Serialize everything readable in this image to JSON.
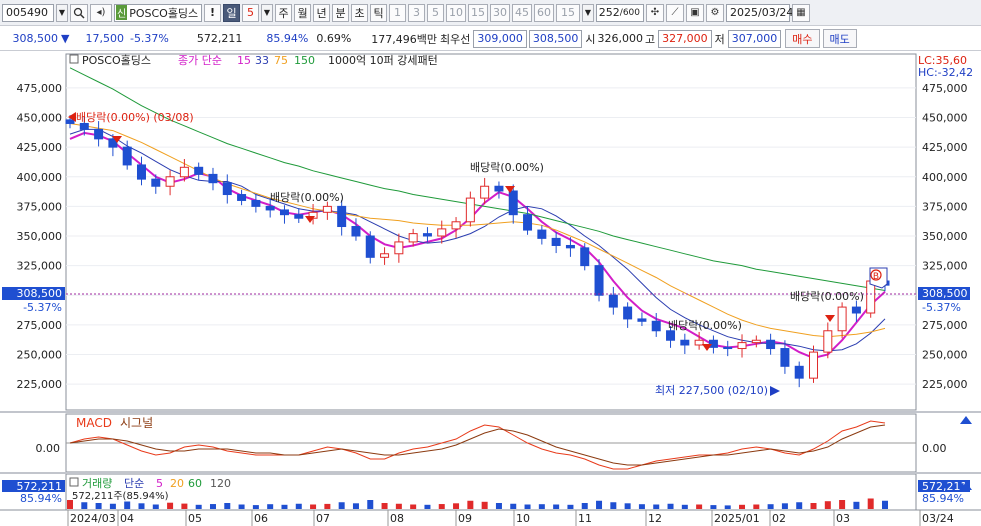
{
  "toolbar": {
    "code": "005490",
    "name": "POSCO홀딩스",
    "mark": "신",
    "warn": "!",
    "period_type": "일",
    "period_value": "5",
    "period_buttons": [
      "주",
      "월",
      "년",
      "분",
      "초",
      "틱"
    ],
    "interval_buttons": [
      "1",
      "3",
      "5",
      "10",
      "15",
      "30",
      "45",
      "60"
    ],
    "custom_interval": "15",
    "bar_count": "252",
    "bar_total": "/600",
    "date": "2025/03/24"
  },
  "quote": {
    "price": "308,500",
    "change": "17,500",
    "change_pct": "-5.37%",
    "volume": "572,211",
    "vol_ratio": "85.94%",
    "turnover_pct": "0.69%",
    "amount": "177,496백만",
    "bid_label": "최우선",
    "bid": "309,000",
    "ask": "308,500",
    "open_label": "시",
    "open": "326,000",
    "high_label": "고",
    "high": "327,000",
    "low_label": "저",
    "low": "307,000",
    "buy_label": "매수",
    "sell_label": "매도"
  },
  "chart_header": {
    "name": "POSCO홀딩스",
    "ma_label": "종가 단순",
    "ma_periods": [
      "15",
      "33",
      "75",
      "150"
    ],
    "extra": "1000억 10퍼 강세패턴"
  },
  "right_labels": {
    "lc": "LC:35,60",
    "hc": "HC:-32,42"
  },
  "price_tag": {
    "value": "308,500",
    "pct": "-5.37%"
  },
  "annotations": {
    "div1": "배당락(0.00%) (03/08)",
    "div2": "배당락(0.00%)",
    "div3": "배당락(0.00%)",
    "div4": "배당락(0.00%)",
    "div5": "배당락(0.00%)",
    "low": "최저 227,500 (02/10)",
    "badge": "B"
  },
  "macd": {
    "title": "MACD",
    "signal": "시그널",
    "zero": "0.00"
  },
  "volume_panel": {
    "title": "거래량",
    "ma_label": "단순",
    "ma_periods": [
      "5",
      "20",
      "60",
      "120"
    ],
    "current": "572,211주(85.94%)",
    "tag_value": "572,211",
    "tag_pct": "85.94%"
  },
  "x_ticks": [
    "2024/03",
    "04",
    "05",
    "06",
    "07",
    "08",
    "09",
    "10",
    "11",
    "12",
    "2025/01",
    "02",
    "03",
    "03/24"
  ],
  "colors": {
    "up": "#e02a2a",
    "down": "#1f4fd1",
    "ma15": "#d21ec8",
    "ma33": "#2b3db0",
    "ma75": "#f0a020",
    "ma150": "#1f9a3a",
    "macd": "#e83a1a",
    "signal": "#8b3a10"
  },
  "chart_data": {
    "type": "candlestick",
    "y_ticks": [
      "475,000",
      "450,000",
      "425,000",
      "400,000",
      "375,000",
      "350,000",
      "325,000",
      "300,000",
      "275,000",
      "250,000",
      "225,000"
    ],
    "ylim": [
      215000,
      490000
    ],
    "last_close": 308500,
    "period_low": 227500,
    "series": [
      {
        "name": "15",
        "values": [
          432000,
          437000,
          435000,
          430000,
          420000,
          410000,
          400000,
          395000,
          398000,
          403000,
          400000,
          390000,
          384000,
          380000,
          376000,
          370000,
          368000,
          370000,
          372000,
          368000,
          360000,
          350000,
          343000,
          340000,
          342000,
          345000,
          348000,
          355000,
          365000,
          378000,
          387000,
          383000,
          373000,
          362000,
          353000,
          347000,
          340000,
          328000,
          312000,
          298000,
          287000,
          280000,
          276000,
          272000,
          265000,
          258000,
          256000,
          257000,
          259000,
          261000,
          259000,
          252000,
          247000,
          250000,
          262000,
          277000,
          292000,
          303000
        ]
      },
      {
        "name": "33",
        "values": [
          436000,
          440000,
          440000,
          434000,
          426000,
          420000,
          413000,
          406000,
          401000,
          397000,
          396000,
          396000,
          392000,
          385000,
          381000,
          377000,
          373000,
          371000,
          371000,
          370000,
          368000,
          362000,
          356000,
          350000,
          346000,
          344000,
          345000,
          348000,
          352000,
          358000,
          366000,
          372000,
          375000,
          373000,
          367000,
          359000,
          350000,
          342000,
          332000,
          322000,
          310000,
          298000,
          288000,
          281000,
          275000,
          270000,
          265000,
          262000,
          260000,
          259000,
          259000,
          257000,
          254000,
          253000,
          254000,
          259000,
          268000,
          280000
        ]
      },
      {
        "name": "75",
        "values": [
          445000,
          443000,
          441000,
          439000,
          434000,
          429000,
          423000,
          417000,
          411000,
          405000,
          399000,
          394000,
          390000,
          386000,
          382000,
          379000,
          376000,
          373000,
          371000,
          369000,
          367000,
          365000,
          364000,
          363000,
          361000,
          360000,
          359000,
          359000,
          359000,
          360000,
          361000,
          362000,
          361000,
          359000,
          355000,
          350000,
          345000,
          339000,
          333000,
          327000,
          321000,
          315000,
          308000,
          302000,
          296000,
          290000,
          284000,
          279000,
          275000,
          272000,
          270000,
          268000,
          266000,
          265000,
          266000,
          267000,
          269000,
          272000
        ]
      },
      {
        "name": "150",
        "values": [
          492000,
          486000,
          480000,
          474000,
          467000,
          460000,
          454000,
          448000,
          443000,
          438000,
          433000,
          428000,
          424000,
          420000,
          416000,
          412000,
          409000,
          405000,
          402000,
          399000,
          396000,
          393000,
          390000,
          388000,
          385000,
          383000,
          381000,
          379000,
          377000,
          375000,
          373000,
          371000,
          369000,
          366000,
          363000,
          360000,
          357000,
          354000,
          350000,
          347000,
          344000,
          341000,
          338000,
          335000,
          332000,
          329000,
          327000,
          325000,
          322000,
          320000,
          318000,
          316000,
          314000,
          312000,
          310000,
          308000,
          306000,
          304000
        ]
      },
      {
        "name": "close",
        "values": [
          445000,
          440000,
          432000,
          425000,
          410000,
          398000,
          392000,
          400000,
          408000,
          402000,
          395000,
          385000,
          380000,
          375000,
          372000,
          368000,
          365000,
          370000,
          375000,
          358000,
          350000,
          332000,
          335000,
          345000,
          352000,
          350000,
          356000,
          362000,
          382000,
          392000,
          388000,
          368000,
          355000,
          348000,
          342000,
          340000,
          325000,
          300000,
          290000,
          280000,
          278000,
          270000,
          262000,
          258000,
          262000,
          256000,
          255000,
          260000,
          262000,
          255000,
          240000,
          230000,
          252000,
          270000,
          290000,
          285000,
          312000,
          308500
        ]
      }
    ],
    "macd": [
      0,
      2,
      3,
      2,
      -1,
      -4,
      -6,
      -5,
      -2,
      -1,
      -2,
      -4,
      -5,
      -6,
      -6,
      -6,
      -6,
      -4,
      -2,
      -3,
      -5,
      -8,
      -8,
      -5,
      -3,
      -2,
      0,
      2,
      6,
      9,
      8,
      4,
      0,
      -3,
      -5,
      -6,
      -8,
      -11,
      -13,
      -13,
      -11,
      -9,
      -8,
      -7,
      -6,
      -6,
      -5,
      -3,
      -2,
      -3,
      -5,
      -6,
      -3,
      1,
      6,
      8,
      11,
      10
    ],
    "signal": [
      0,
      1,
      2,
      2,
      1,
      -1,
      -3,
      -4,
      -4,
      -3,
      -3,
      -3,
      -4,
      -5,
      -5,
      -6,
      -6,
      -5,
      -4,
      -3,
      -4,
      -5,
      -6,
      -6,
      -5,
      -4,
      -3,
      -1,
      2,
      5,
      7,
      6,
      4,
      1,
      -2,
      -4,
      -6,
      -8,
      -10,
      -11,
      -11,
      -10,
      -9,
      -8,
      -7,
      -6,
      -6,
      -5,
      -4,
      -3,
      -4,
      -5,
      -4,
      -2,
      2,
      5,
      8,
      9
    ],
    "volume": [
      60,
      45,
      40,
      35,
      50,
      38,
      30,
      42,
      36,
      28,
      33,
      40,
      30,
      26,
      32,
      28,
      35,
      30,
      34,
      45,
      38,
      60,
      40,
      35,
      30,
      28,
      33,
      38,
      55,
      48,
      40,
      35,
      30,
      32,
      30,
      28,
      40,
      55,
      45,
      38,
      32,
      30,
      35,
      28,
      30,
      26,
      24,
      28,
      30,
      32,
      38,
      45,
      40,
      52,
      60,
      48,
      70,
      55
    ]
  }
}
